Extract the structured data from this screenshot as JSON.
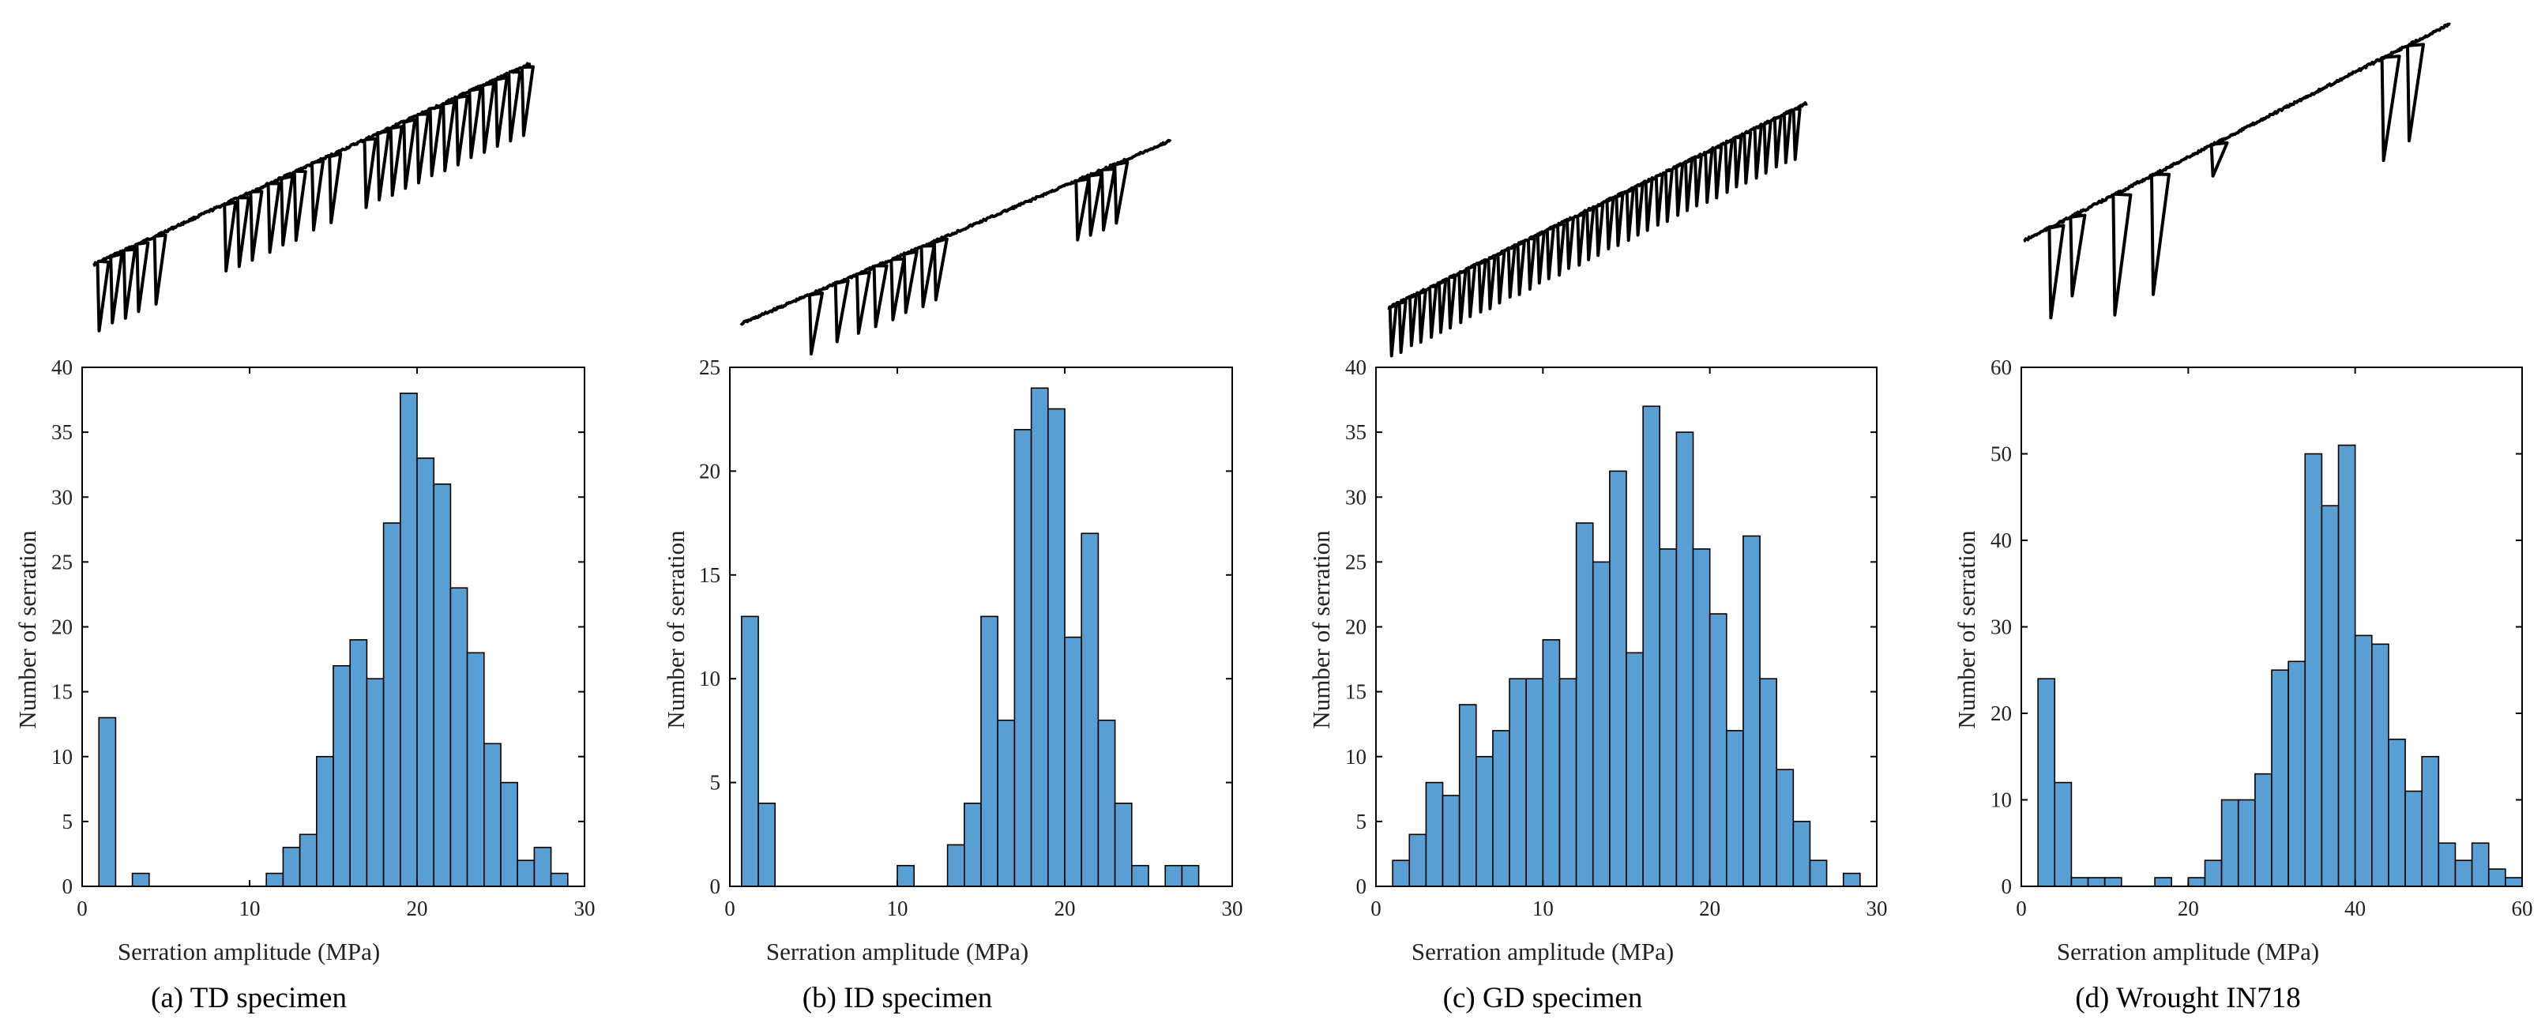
{
  "chart_data": [
    {
      "type": "bar",
      "title": "(a) TD specimen",
      "xlabel": "Serration amplitude (MPa)",
      "ylabel": "Number of serration",
      "xlim": [
        0,
        30
      ],
      "ylim": [
        0,
        40
      ],
      "xticks": [
        0,
        10,
        20,
        30
      ],
      "yticks": [
        0,
        5,
        10,
        15,
        20,
        25,
        30,
        35,
        40
      ],
      "bin_width": 1.0,
      "bins": [
        {
          "start": 1.0,
          "count": 13
        },
        {
          "start": 3.0,
          "count": 1
        },
        {
          "start": 11.0,
          "count": 1
        },
        {
          "start": 12.0,
          "count": 3
        },
        {
          "start": 13.0,
          "count": 4
        },
        {
          "start": 14.0,
          "count": 10
        },
        {
          "start": 15.0,
          "count": 17
        },
        {
          "start": 16.0,
          "count": 19
        },
        {
          "start": 17.0,
          "count": 16
        },
        {
          "start": 18.0,
          "count": 28
        },
        {
          "start": 19.0,
          "count": 38
        },
        {
          "start": 20.0,
          "count": 33
        },
        {
          "start": 21.0,
          "count": 31
        },
        {
          "start": 22.0,
          "count": 23
        },
        {
          "start": 23.0,
          "count": 18
        },
        {
          "start": 24.0,
          "count": 11
        },
        {
          "start": 25.0,
          "count": 8
        },
        {
          "start": 26.0,
          "count": 2
        },
        {
          "start": 27.0,
          "count": 3
        },
        {
          "start": 28.0,
          "count": 1
        }
      ]
    },
    {
      "type": "bar",
      "title": "(b) ID specimen",
      "xlabel": "Serration amplitude (MPa)",
      "ylabel": "Number of serration",
      "xlim": [
        0,
        30
      ],
      "ylim": [
        0,
        25
      ],
      "xticks": [
        0,
        10,
        20,
        30
      ],
      "yticks": [
        0,
        5,
        10,
        15,
        20,
        25
      ],
      "bin_width": 1.0,
      "bins": [
        {
          "start": 0.7,
          "count": 13
        },
        {
          "start": 1.7,
          "count": 4
        },
        {
          "start": 10.0,
          "count": 1
        },
        {
          "start": 13.0,
          "count": 2
        },
        {
          "start": 14.0,
          "count": 4
        },
        {
          "start": 15.0,
          "count": 13
        },
        {
          "start": 16.0,
          "count": 8
        },
        {
          "start": 17.0,
          "count": 22
        },
        {
          "start": 18.0,
          "count": 24
        },
        {
          "start": 19.0,
          "count": 23
        },
        {
          "start": 20.0,
          "count": 12
        },
        {
          "start": 21.0,
          "count": 17
        },
        {
          "start": 22.0,
          "count": 8
        },
        {
          "start": 23.0,
          "count": 4
        },
        {
          "start": 24.0,
          "count": 1
        },
        {
          "start": 26.0,
          "count": 1
        },
        {
          "start": 27.0,
          "count": 1
        }
      ]
    },
    {
      "type": "bar",
      "title": "(c) GD specimen",
      "xlabel": "Serration amplitude (MPa)",
      "ylabel": "Number of serration",
      "xlim": [
        0,
        30
      ],
      "ylim": [
        0,
        40
      ],
      "xticks": [
        0,
        10,
        20,
        30
      ],
      "yticks": [
        0,
        5,
        10,
        15,
        20,
        25,
        30,
        35,
        40
      ],
      "bin_width": 1.0,
      "bins": [
        {
          "start": 1.0,
          "count": 2
        },
        {
          "start": 2.0,
          "count": 4
        },
        {
          "start": 3.0,
          "count": 8
        },
        {
          "start": 4.0,
          "count": 7
        },
        {
          "start": 5.0,
          "count": 14
        },
        {
          "start": 6.0,
          "count": 10
        },
        {
          "start": 7.0,
          "count": 12
        },
        {
          "start": 8.0,
          "count": 16
        },
        {
          "start": 9.0,
          "count": 16
        },
        {
          "start": 10.0,
          "count": 19
        },
        {
          "start": 11.0,
          "count": 16
        },
        {
          "start": 12.0,
          "count": 28
        },
        {
          "start": 13.0,
          "count": 25
        },
        {
          "start": 14.0,
          "count": 32
        },
        {
          "start": 15.0,
          "count": 18
        },
        {
          "start": 16.0,
          "count": 37
        },
        {
          "start": 17.0,
          "count": 26
        },
        {
          "start": 18.0,
          "count": 35
        },
        {
          "start": 19.0,
          "count": 26
        },
        {
          "start": 20.0,
          "count": 21
        },
        {
          "start": 21.0,
          "count": 12
        },
        {
          "start": 22.0,
          "count": 27
        },
        {
          "start": 23.0,
          "count": 16
        },
        {
          "start": 24.0,
          "count": 9
        },
        {
          "start": 25.0,
          "count": 5
        },
        {
          "start": 26.0,
          "count": 2
        },
        {
          "start": 28.0,
          "count": 1
        }
      ]
    },
    {
      "type": "bar",
      "title": "(d) Wrought IN718",
      "xlabel": "Serration amplitude (MPa)",
      "ylabel": "Number of serration",
      "xlim": [
        0,
        60
      ],
      "ylim": [
        0,
        60
      ],
      "xticks": [
        0,
        20,
        40,
        60
      ],
      "yticks": [
        0,
        10,
        20,
        30,
        40,
        50,
        60
      ],
      "bin_width": 2.0,
      "bins": [
        {
          "start": 2.0,
          "count": 24
        },
        {
          "start": 4.0,
          "count": 12
        },
        {
          "start": 6.0,
          "count": 1
        },
        {
          "start": 8.0,
          "count": 1
        },
        {
          "start": 10.0,
          "count": 1
        },
        {
          "start": 16.0,
          "count": 1
        },
        {
          "start": 20.0,
          "count": 1
        },
        {
          "start": 22.0,
          "count": 3
        },
        {
          "start": 24.0,
          "count": 10
        },
        {
          "start": 26.0,
          "count": 10
        },
        {
          "start": 28.0,
          "count": 13
        },
        {
          "start": 30.0,
          "count": 25
        },
        {
          "start": 32.0,
          "count": 26
        },
        {
          "start": 34.0,
          "count": 50
        },
        {
          "start": 36.0,
          "count": 44
        },
        {
          "start": 38.0,
          "count": 51
        },
        {
          "start": 40.0,
          "count": 29
        },
        {
          "start": 42.0,
          "count": 28
        },
        {
          "start": 44.0,
          "count": 17
        },
        {
          "start": 46.0,
          "count": 11
        },
        {
          "start": 48.0,
          "count": 15
        },
        {
          "start": 50.0,
          "count": 5
        },
        {
          "start": 52.0,
          "count": 3
        },
        {
          "start": 54.0,
          "count": 5
        },
        {
          "start": 56.0,
          "count": 2
        },
        {
          "start": 58.0,
          "count": 1
        }
      ]
    }
  ]
}
